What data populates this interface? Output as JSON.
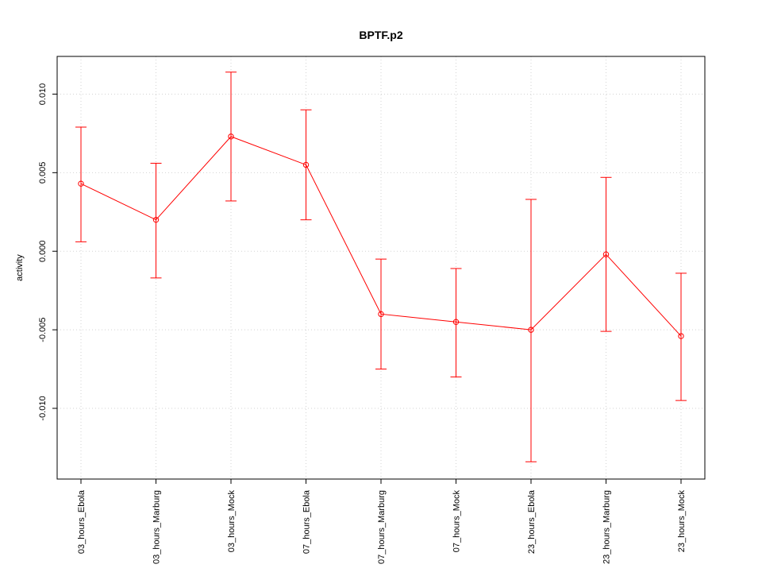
{
  "chart_data": {
    "type": "line",
    "title": "BPTF.p2",
    "xlabel": "",
    "ylabel": "activity",
    "categories": [
      "03_hours_Ebola",
      "03_hours_Marburg",
      "03_hours_Mock",
      "07_hours_Ebola",
      "07_hours_Marburg",
      "07_hours_Mock",
      "23_hours_Ebola",
      "23_hours_Marburg",
      "23_hours_Mock"
    ],
    "series": [
      {
        "values": [
          0.0043,
          0.002,
          0.0073,
          0.0055,
          -0.004,
          -0.0045,
          -0.005,
          -0.0002,
          -0.0054
        ],
        "lower": [
          0.0006,
          -0.0017,
          0.0032,
          0.002,
          -0.0075,
          -0.008,
          -0.0134,
          -0.0051,
          -0.0095
        ],
        "upper": [
          0.0079,
          0.0056,
          0.0114,
          0.009,
          -0.0005,
          -0.0011,
          0.0033,
          0.0047,
          -0.0014
        ],
        "color": "#ff0000"
      }
    ],
    "yticks": [
      "-0.010",
      "-0.005",
      "0.000",
      "0.005",
      "0.010"
    ],
    "ytick_values": [
      -0.01,
      -0.005,
      0.0,
      0.005,
      0.01
    ],
    "ylim": [
      -0.0145,
      0.0124
    ],
    "grid": true,
    "reference_line": 0
  }
}
